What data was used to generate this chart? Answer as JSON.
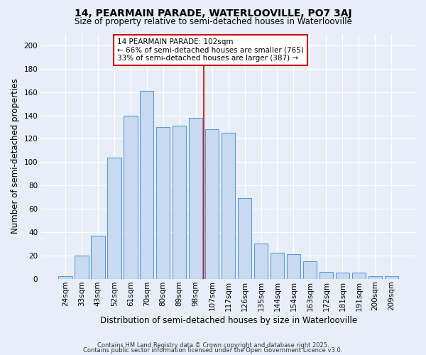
{
  "title1": "14, PEARMAIN PARADE, WATERLOOVILLE, PO7 3AJ",
  "title2": "Size of property relative to semi-detached houses in Waterlooville",
  "xlabel": "Distribution of semi-detached houses by size in Waterlooville",
  "ylabel": "Number of semi-detached properties",
  "categories": [
    "24sqm",
    "33sqm",
    "43sqm",
    "52sqm",
    "61sqm",
    "70sqm",
    "80sqm",
    "89sqm",
    "98sqm",
    "107sqm",
    "117sqm",
    "126sqm",
    "135sqm",
    "144sqm",
    "154sqm",
    "163sqm",
    "172sqm",
    "181sqm",
    "191sqm",
    "200sqm",
    "209sqm"
  ],
  "values": [
    2,
    20,
    37,
    104,
    140,
    161,
    130,
    131,
    138,
    128,
    125,
    69,
    30,
    22,
    21,
    15,
    6,
    5,
    5,
    2,
    2
  ],
  "bar_color": "#c9daf0",
  "bar_edge_color": "#5b9bd5",
  "vline_color": "#cc0000",
  "annotation_box_color": "#cc0000",
  "ylim": [
    0,
    210
  ],
  "yticks": [
    0,
    20,
    40,
    60,
    80,
    100,
    120,
    140,
    160,
    180,
    200
  ],
  "bg_color": "#e8eef8",
  "footer1": "Contains HM Land Registry data © Crown copyright and database right 2025.",
  "footer2": "Contains public sector information licensed under the Open Government Licence v3.0."
}
